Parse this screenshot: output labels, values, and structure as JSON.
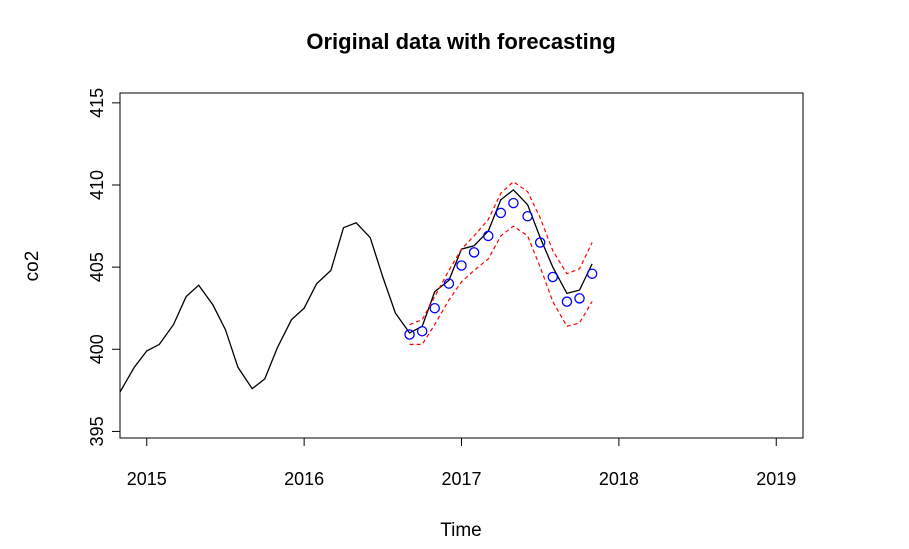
{
  "chart_data": {
    "type": "line",
    "title": "Original data with forecasting",
    "xlabel": "Time",
    "ylabel": "co2",
    "xlim": [
      2014.83,
      2019.17
    ],
    "ylim": [
      394.6,
      415.6
    ],
    "x_ticks": [
      "2015",
      "2016",
      "2017",
      "2018",
      "2019"
    ],
    "y_ticks": [
      "395",
      "400",
      "405",
      "410",
      "415"
    ],
    "grid": false,
    "legend": "none",
    "colors": {
      "original": "#000000",
      "forecast_points": "#0000ff",
      "interval": "#ff0000"
    },
    "series": [
      {
        "style": "solid-line",
        "x": [
          2014.83,
          2014.92,
          2015.0,
          2015.08,
          2015.17,
          2015.25,
          2015.33,
          2015.42,
          2015.5,
          2015.58,
          2015.67,
          2015.75,
          2015.83,
          2015.92,
          2016.0,
          2016.08,
          2016.17,
          2016.25,
          2016.33,
          2016.42,
          2016.5,
          2016.58,
          2016.67,
          2016.75,
          2016.83,
          2016.92,
          2017.0,
          2017.08,
          2017.17,
          2017.25,
          2017.33,
          2017.42,
          2017.5,
          2017.58,
          2017.67,
          2017.75,
          2017.83
        ],
        "values": [
          397.4,
          398.9,
          399.9,
          400.3,
          401.5,
          403.2,
          403.9,
          402.7,
          401.2,
          398.9,
          397.6,
          398.2,
          400.1,
          401.8,
          402.5,
          404.0,
          404.8,
          407.4,
          407.7,
          406.8,
          404.4,
          402.2,
          401.0,
          401.4,
          403.5,
          404.2,
          406.1,
          406.3,
          407.2,
          409.1,
          409.7,
          408.8,
          406.8,
          405.0,
          403.4,
          403.6,
          405.2
        ]
      },
      {
        "style": "points",
        "x": [
          2016.67,
          2016.75,
          2016.83,
          2016.92,
          2017.0,
          2017.08,
          2017.17,
          2017.25,
          2017.33,
          2017.42,
          2017.5,
          2017.58,
          2017.67,
          2017.75,
          2017.83
        ],
        "values": [
          400.9,
          401.1,
          402.5,
          404.0,
          405.1,
          405.9,
          406.9,
          408.3,
          408.9,
          408.1,
          406.5,
          404.4,
          402.9,
          403.1,
          404.6
        ]
      },
      {
        "style": "dashed-line",
        "x": [
          2016.67,
          2016.75,
          2016.83,
          2016.92,
          2017.0,
          2017.08,
          2017.17,
          2017.25,
          2017.33,
          2017.42,
          2017.5,
          2017.58,
          2017.67,
          2017.75,
          2017.83
        ],
        "values": [
          401.5,
          401.8,
          403.2,
          404.8,
          406.1,
          406.9,
          407.9,
          409.5,
          410.2,
          409.6,
          408.0,
          406.0,
          404.6,
          404.9,
          406.5
        ]
      },
      {
        "style": "dashed-line",
        "x": [
          2016.67,
          2016.75,
          2016.83,
          2016.92,
          2017.0,
          2017.08,
          2017.17,
          2017.25,
          2017.33,
          2017.42,
          2017.5,
          2017.58,
          2017.67,
          2017.75,
          2017.83
        ],
        "values": [
          400.3,
          400.3,
          401.5,
          403.0,
          404.1,
          404.8,
          405.5,
          406.9,
          407.5,
          406.9,
          405.0,
          402.9,
          401.4,
          401.6,
          402.9
        ]
      }
    ]
  }
}
